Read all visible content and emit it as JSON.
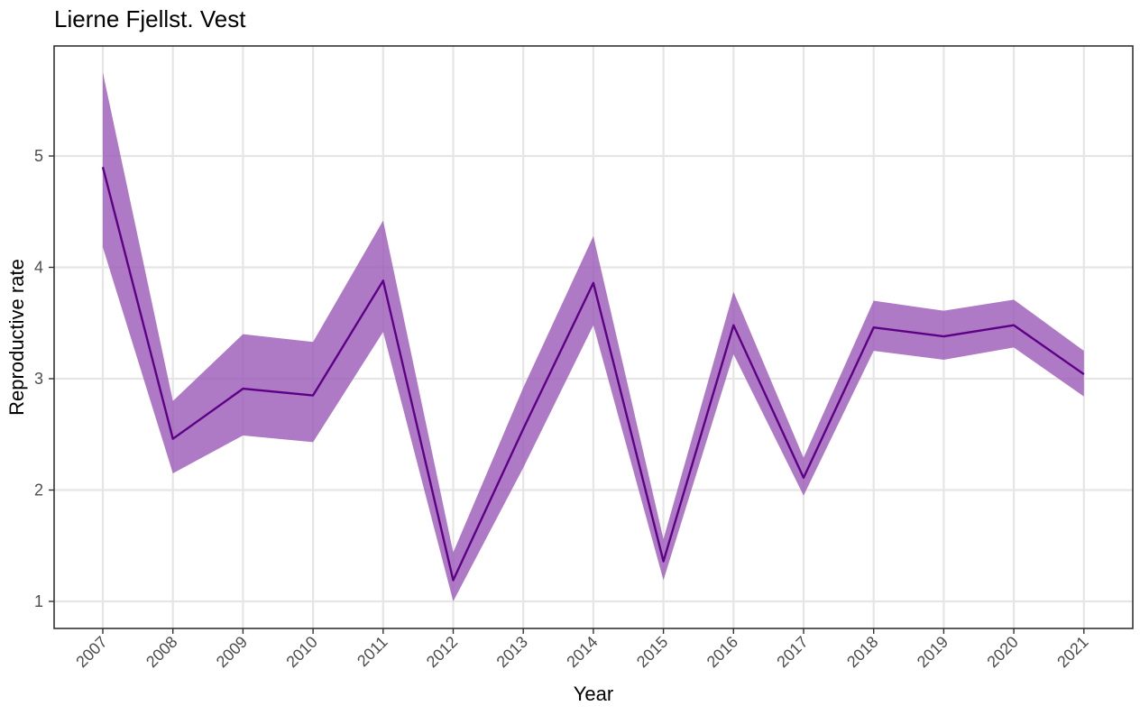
{
  "chart_data": {
    "type": "line",
    "title": "Lierne Fjellst. Vest",
    "xlabel": "Year",
    "ylabel": "Reproductive rate",
    "x": [
      "2007",
      "2008",
      "2009",
      "2010",
      "2011",
      "2012",
      "2013",
      "2014",
      "2015",
      "2016",
      "2017",
      "2018",
      "2019",
      "2020",
      "2021"
    ],
    "series": [
      {
        "values": [
          4.9,
          2.46,
          2.91,
          2.85,
          3.88,
          1.19,
          2.55,
          3.86,
          1.36,
          3.48,
          2.11,
          3.46,
          3.38,
          3.48,
          3.04
        ],
        "lower": [
          4.18,
          2.15,
          2.49,
          2.43,
          3.42,
          1.0,
          2.2,
          3.48,
          1.19,
          3.22,
          1.95,
          3.25,
          3.17,
          3.28,
          2.84
        ],
        "upper": [
          5.75,
          2.8,
          3.4,
          3.33,
          4.42,
          1.44,
          2.92,
          4.28,
          1.56,
          3.78,
          2.29,
          3.7,
          3.61,
          3.71,
          3.25
        ]
      }
    ],
    "yticks": [
      1,
      2,
      3,
      4,
      5
    ],
    "ylim": [
      0.75,
      5.95
    ],
    "grid": true,
    "colors": {
      "line": "#5e0085",
      "ribbon": "#9b59b6",
      "grid": "#e5e5e5",
      "panel_border": "#333333"
    }
  }
}
